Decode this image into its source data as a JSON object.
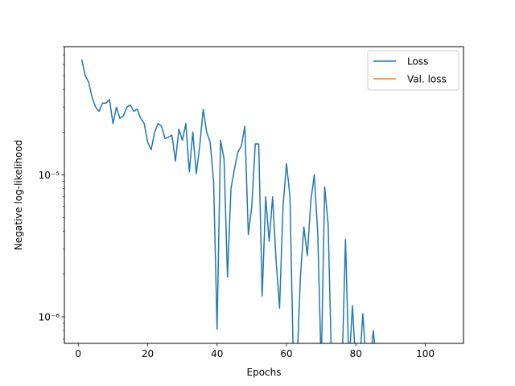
{
  "chart_data": {
    "type": "line",
    "xlabel": "Epochs",
    "ylabel": "Negative log-likelihood",
    "xlim": [
      -4,
      111
    ],
    "ylim": [
      6.5e-07,
      8e-05
    ],
    "yscale": "log",
    "grid": false,
    "legend_position": "top-right",
    "x_ticks": [
      0,
      20,
      40,
      60,
      80,
      100
    ],
    "x_tick_labels": [
      "0",
      "20",
      "40",
      "60",
      "80",
      "100"
    ],
    "y_ticks": [
      1e-06,
      1e-05
    ],
    "y_tick_labels": [
      "10⁻⁶",
      "10⁻⁵"
    ],
    "series": [
      {
        "name": "Loss",
        "color": "#1f77b4",
        "x": [
          1,
          2,
          3,
          4,
          5,
          6,
          7,
          8,
          9,
          10,
          11,
          12,
          13,
          14,
          15,
          16,
          17,
          18,
          19,
          20,
          21,
          22,
          23,
          24,
          25,
          26,
          27,
          28,
          29,
          30,
          31,
          32,
          33,
          34,
          35,
          36,
          37,
          38,
          39,
          40,
          41,
          42,
          43,
          44,
          45,
          46,
          47,
          48,
          49,
          50,
          51,
          52,
          53,
          54,
          55,
          56,
          57,
          58,
          59,
          60,
          61,
          62,
          63,
          64,
          65,
          66,
          67,
          68,
          69,
          70,
          71,
          72,
          73,
          74,
          75,
          76,
          77,
          78,
          79,
          80,
          81,
          82,
          83,
          84,
          85,
          86,
          87,
          88,
          89,
          90,
          91,
          92,
          93,
          94,
          95,
          96,
          97,
          98,
          99,
          100,
          101,
          102,
          103,
          104,
          105,
          106
        ],
        "y": [
          6.5e-05,
          5e-05,
          4.5e-05,
          3.5e-05,
          3e-05,
          2.8e-05,
          3.2e-05,
          3.2e-05,
          3.4e-05,
          2.3e-05,
          3e-05,
          2.5e-05,
          2.6e-05,
          3e-05,
          3.1e-05,
          2.8e-05,
          2.9e-05,
          2.5e-05,
          2.3e-05,
          1.7e-05,
          1.5e-05,
          2e-05,
          2.3e-05,
          2.2e-05,
          1.8e-05,
          1.85e-05,
          1.9e-05,
          1.25e-05,
          2.1e-05,
          1.75e-05,
          2.3e-05,
          1.05e-05,
          2e-05,
          1.02e-05,
          1.6e-05,
          2.9e-05,
          2e-05,
          1.7e-05,
          9e-06,
          8.2e-07,
          1.75e-05,
          1.3e-05,
          1.9e-06,
          8e-06,
          1.1e-05,
          1.45e-05,
          1.6e-05,
          2.2e-05,
          3.8e-06,
          6e-06,
          1.65e-05,
          1.65e-05,
          1.4e-06,
          7e-06,
          3.4e-06,
          7e-06,
          2.5e-06,
          1.15e-06,
          6e-06,
          1.2e-05,
          7e-06,
          null,
          null,
          1.9e-06,
          4.3e-06,
          2.7e-06,
          6.5e-06,
          1e-05,
          3.9e-06,
          null,
          8.2e-06,
          4.5e-06,
          null,
          null,
          null,
          null,
          3.5e-06,
          null,
          1.2e-06,
          null,
          null,
          1.05e-06,
          null,
          null,
          8e-07,
          null,
          null,
          null,
          null,
          null,
          null,
          null,
          null,
          null,
          null,
          null,
          null,
          null,
          null,
          null,
          null,
          null,
          null,
          null,
          null,
          null
        ]
      },
      {
        "name": "Val. loss",
        "color": "#ff7f0e",
        "x": [],
        "y": []
      }
    ]
  }
}
